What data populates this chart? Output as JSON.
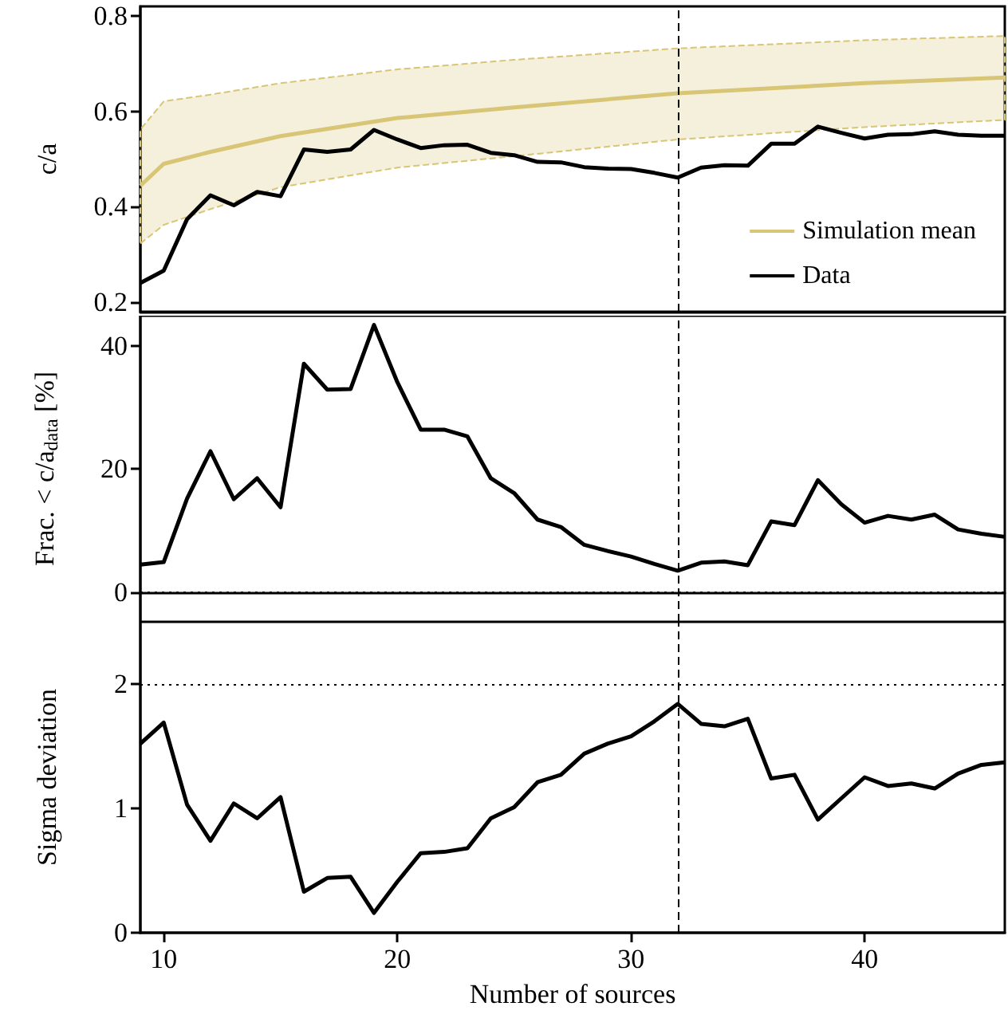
{
  "chart_data": [
    {
      "type": "line",
      "ylabel": "c/a",
      "xlim": [
        9,
        46
      ],
      "xticks": [
        10,
        20,
        30,
        40
      ],
      "ylim": [
        0.18,
        0.82
      ],
      "yticks": [
        0.2,
        0.4,
        0.6,
        0.8
      ],
      "tick_labels": "y",
      "legend": "bottom right",
      "x": [
        9,
        10,
        11,
        12,
        13,
        14,
        15,
        16,
        17,
        18,
        19,
        20,
        21,
        22,
        23,
        24,
        25,
        26,
        27,
        28,
        29,
        30,
        31,
        32,
        33,
        34,
        35,
        36,
        37,
        38,
        39,
        40,
        41,
        42,
        43,
        44,
        45,
        46
      ],
      "series": [
        {
          "name": "Simulation mean",
          "color": "#d8c575",
          "x": [
            9,
            10,
            12,
            15,
            20,
            25,
            32,
            40,
            46
          ],
          "values": [
            0.444,
            0.49,
            0.515,
            0.548,
            0.586,
            0.608,
            0.638,
            0.659,
            0.671
          ],
          "lower": [
            0.323,
            0.362,
            0.395,
            0.441,
            0.482,
            0.506,
            0.541,
            0.567,
            0.582
          ],
          "upper": [
            0.562,
            0.621,
            0.635,
            0.659,
            0.688,
            0.708,
            0.732,
            0.749,
            0.758
          ]
        },
        {
          "name": "Data",
          "color": "#000000",
          "values": [
            0.24,
            0.266,
            0.374,
            0.424,
            0.403,
            0.431,
            0.422,
            0.52,
            0.515,
            0.52,
            0.561,
            0.541,
            0.523,
            0.529,
            0.53,
            0.513,
            0.508,
            0.494,
            0.493,
            0.483,
            0.48,
            0.479,
            0.471,
            0.461,
            0.482,
            0.487,
            0.486,
            0.532,
            0.532,
            0.568,
            0.555,
            0.543,
            0.551,
            0.552,
            0.558,
            0.551,
            0.549,
            0.549
          ]
        }
      ],
      "ref_lines": [
        {
          "axis": "x",
          "value": 32,
          "line_style": "dashed",
          "color": "#000000"
        }
      ]
    },
    {
      "type": "line",
      "ylabel": "Frac. < c/a$_{data}$ [%]",
      "xlim": [
        9,
        46
      ],
      "xticks": [
        10,
        20,
        30,
        40
      ],
      "ylim": [
        -4.8,
        44.9
      ],
      "yticks": [
        0,
        20,
        40
      ],
      "tick_labels": "y",
      "x": [
        9,
        10,
        11,
        12,
        13,
        14,
        15,
        16,
        17,
        18,
        19,
        20,
        21,
        22,
        23,
        24,
        25,
        26,
        27,
        28,
        29,
        30,
        31,
        32,
        33,
        34,
        35,
        36,
        37,
        38,
        39,
        40,
        41,
        42,
        43,
        44,
        45,
        46
      ],
      "series": [
        {
          "color": "#000000",
          "values": [
            4.5,
            4.9,
            15.2,
            22.9,
            15.1,
            18.5,
            13.8,
            37.1,
            32.9,
            33.0,
            43.4,
            34.1,
            26.4,
            26.4,
            25.3,
            18.5,
            16.1,
            11.8,
            10.6,
            7.7,
            6.7,
            5.8,
            4.6,
            3.5,
            4.8,
            5.0,
            4.4,
            11.5,
            10.9,
            18.2,
            14.3,
            11.3,
            12.4,
            11.8,
            12.6,
            10.2,
            9.5,
            9.0
          ]
        }
      ],
      "ref_lines": [
        {
          "axis": "x",
          "value": 32,
          "line_style": "dashed",
          "color": "#000000"
        },
        {
          "axis": "y",
          "value": 0,
          "line_style": "dotted",
          "color": "#000000"
        }
      ]
    },
    {
      "type": "line",
      "xlabel": "Number of sources",
      "ylabel": "Sigma deviation",
      "xlim": [
        9,
        46
      ],
      "xticks": [
        10,
        20,
        30,
        40
      ],
      "ylim": [
        0,
        2.5
      ],
      "yticks": [
        0,
        1,
        2
      ],
      "x": [
        9,
        10,
        11,
        12,
        13,
        14,
        15,
        16,
        17,
        18,
        19,
        20,
        21,
        22,
        23,
        24,
        25,
        26,
        27,
        28,
        29,
        30,
        31,
        32,
        33,
        34,
        35,
        36,
        37,
        38,
        39,
        40,
        41,
        42,
        43,
        44,
        45,
        46
      ],
      "series": [
        {
          "color": "#000000",
          "values": [
            1.52,
            1.69,
            1.03,
            0.74,
            1.04,
            0.92,
            1.09,
            0.33,
            0.44,
            0.45,
            0.16,
            0.41,
            0.64,
            0.65,
            0.68,
            0.92,
            1.01,
            1.21,
            1.27,
            1.44,
            1.52,
            1.58,
            1.7,
            1.84,
            1.68,
            1.66,
            1.72,
            1.24,
            1.27,
            0.91,
            1.08,
            1.25,
            1.18,
            1.2,
            1.16,
            1.28,
            1.35,
            1.37
          ]
        }
      ],
      "ref_lines": [
        {
          "axis": "x",
          "value": 32,
          "line_style": "dashed",
          "color": "#000000"
        },
        {
          "axis": "y",
          "value": 2,
          "line_style": "dotted",
          "color": "#000000"
        }
      ]
    }
  ]
}
